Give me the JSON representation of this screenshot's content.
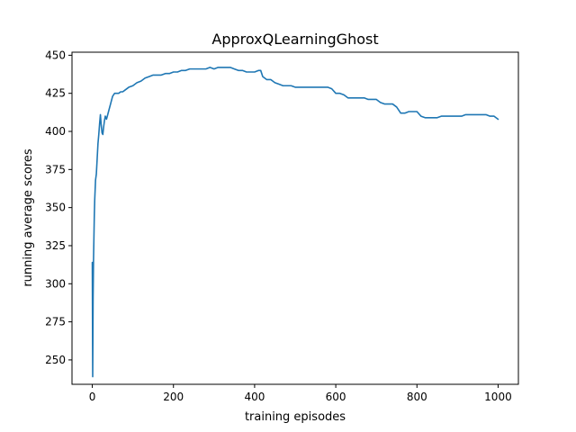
{
  "chart_data": {
    "type": "line",
    "title": "ApproxQLearningGhost",
    "xlabel": "training episodes",
    "ylabel": "running average scores",
    "xlim": [
      -50,
      1050
    ],
    "ylim": [
      234,
      452
    ],
    "xticks": [
      0,
      200,
      400,
      600,
      800,
      1000
    ],
    "xtick_labels": [
      "0",
      "200",
      "400",
      "600",
      "800",
      "1000"
    ],
    "yticks": [
      250,
      275,
      300,
      325,
      350,
      375,
      400,
      425,
      450
    ],
    "ytick_labels": [
      "250",
      "275",
      "300",
      "325",
      "350",
      "375",
      "400",
      "425",
      "450"
    ],
    "grid": false,
    "series": [
      {
        "color": "#1f77b4",
        "x": [
          0,
          1,
          2,
          3,
          4,
          5,
          6,
          8,
          10,
          12,
          14,
          16,
          18,
          20,
          22,
          24,
          26,
          28,
          30,
          32,
          35,
          38,
          40,
          42,
          45,
          48,
          50,
          55,
          60,
          65,
          70,
          75,
          80,
          90,
          100,
          110,
          120,
          130,
          140,
          150,
          160,
          170,
          180,
          190,
          200,
          210,
          220,
          230,
          240,
          250,
          260,
          270,
          280,
          290,
          300,
          310,
          320,
          330,
          340,
          350,
          360,
          370,
          380,
          390,
          400,
          410,
          415,
          420,
          430,
          440,
          450,
          460,
          470,
          480,
          490,
          500,
          510,
          520,
          530,
          540,
          550,
          560,
          570,
          580,
          590,
          600,
          610,
          620,
          630,
          640,
          650,
          660,
          670,
          680,
          690,
          700,
          710,
          720,
          730,
          740,
          750,
          760,
          770,
          780,
          790,
          800,
          810,
          820,
          830,
          840,
          850,
          860,
          870,
          880,
          890,
          900,
          910,
          920,
          930,
          940,
          950,
          960,
          970,
          980,
          990,
          1000
        ],
        "y": [
          314,
          239,
          290,
          315,
          330,
          345,
          355,
          368,
          372,
          382,
          392,
          398,
          405,
          411,
          404,
          399,
          398,
          403,
          407,
          410,
          408,
          411,
          413,
          415,
          418,
          421,
          423,
          425,
          425,
          425,
          426,
          426,
          427,
          429,
          430,
          432,
          433,
          435,
          436,
          437,
          437,
          437,
          438,
          438,
          439,
          439,
          440,
          440,
          441,
          441,
          441,
          441,
          441,
          442,
          441,
          442,
          442,
          442,
          442,
          441,
          440,
          440,
          439,
          439,
          439,
          440,
          440,
          436,
          434,
          434,
          432,
          431,
          430,
          430,
          430,
          429,
          429,
          429,
          429,
          429,
          429,
          429,
          429,
          429,
          428,
          425,
          425,
          424,
          422,
          422,
          422,
          422,
          422,
          421,
          421,
          421,
          419,
          418,
          418,
          418,
          416,
          412,
          412,
          413,
          413,
          413,
          410,
          409,
          409,
          409,
          409,
          410,
          410,
          410,
          410,
          410,
          410,
          411,
          411,
          411,
          411,
          411,
          411,
          410,
          410,
          408
        ]
      }
    ]
  }
}
